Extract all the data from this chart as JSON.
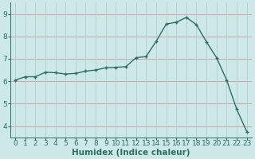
{
  "x": [
    0,
    1,
    2,
    3,
    4,
    5,
    6,
    7,
    8,
    9,
    10,
    11,
    12,
    13,
    14,
    15,
    16,
    17,
    18,
    19,
    20,
    21,
    22,
    23
  ],
  "y": [
    6.05,
    6.2,
    6.2,
    6.4,
    6.38,
    6.32,
    6.35,
    6.45,
    6.5,
    6.6,
    6.62,
    6.65,
    7.05,
    7.1,
    7.78,
    8.55,
    8.63,
    8.85,
    8.52,
    7.75,
    7.05,
    6.05,
    4.75,
    3.75
  ],
  "xlabel": "Humidex (Indice chaleur)",
  "ylabel": "",
  "ylim": [
    3.5,
    9.5
  ],
  "xlim": [
    -0.5,
    23.5
  ],
  "yticks": [
    4,
    5,
    6,
    7,
    8,
    9
  ],
  "xticks": [
    0,
    1,
    2,
    3,
    4,
    5,
    6,
    7,
    8,
    9,
    10,
    11,
    12,
    13,
    14,
    15,
    16,
    17,
    18,
    19,
    20,
    21,
    22,
    23
  ],
  "line_color": "#2e6e62",
  "marker_color": "#2e6e62",
  "bg_color": "#cce8e8",
  "grid_color_h": "#d4a0a0",
  "grid_color_v": "#b8d0d0",
  "xlabel_fontsize": 7.5,
  "tick_fontsize": 6.5,
  "tick_color": "#2e6e62"
}
